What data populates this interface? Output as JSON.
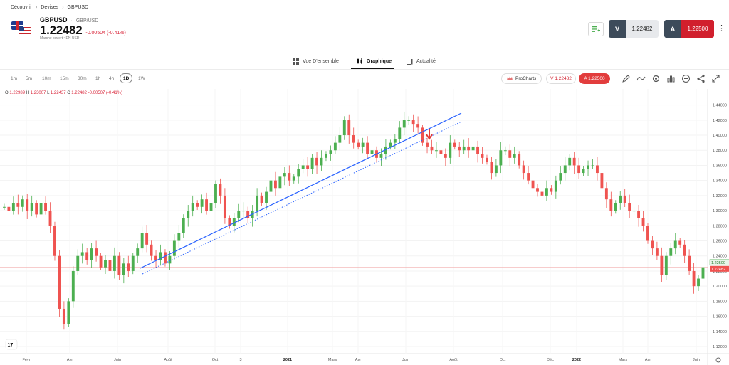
{
  "breadcrumb": {
    "items": [
      "Découvrir",
      "Devises",
      "GBPUSD"
    ]
  },
  "instrument": {
    "symbol": "GBPUSD",
    "pair": "GBP/USD",
    "price": "1.22482",
    "change": "-0.00504 (-0.41%)",
    "market_status": "Marché ouvert",
    "currency": "EN USD"
  },
  "trade": {
    "sell_label": "V",
    "sell_price": "1.22482",
    "buy_label": "A",
    "buy_price": "1.22500"
  },
  "tabs": [
    {
      "label": "Vue D'ensemble",
      "icon": "grid-icon"
    },
    {
      "label": "Graphique",
      "icon": "candles-icon",
      "active": true
    },
    {
      "label": "Actualité",
      "icon": "news-icon"
    }
  ],
  "timeframes": [
    "1m",
    "5m",
    "10m",
    "15m",
    "30m",
    "1h",
    "4h",
    "1D",
    "1W"
  ],
  "active_timeframe": "1D",
  "chart_toolbar": {
    "prochart_label": "ProCharts",
    "sell_pill": "V 1.22482",
    "buy_pill": "A 1.22500",
    "icons": [
      "pencil-icon",
      "indicators-icon",
      "settings-icon",
      "bar-chart-icon",
      "plus-circle-icon",
      "share-icon",
      "expand-icon"
    ]
  },
  "ohlc": {
    "o_label": "O",
    "o": "1.22989",
    "h_label": "H",
    "h": "1.23007",
    "l_label": "L",
    "l": "1.22437",
    "c_label": "C",
    "c": "1.22482",
    "change": "-0.00507 (-0.41%)"
  },
  "colors": {
    "up": "#4caf50",
    "down": "#ef5350",
    "trendline": "#2962ff",
    "brand_red": "#d11f2d"
  },
  "chart_data": {
    "type": "line",
    "title": "",
    "xlabel": "",
    "ylabel": "",
    "ylim": [
      1.12,
      1.45
    ],
    "y_ticks": [
      "1.44000",
      "1.42000",
      "1.40000",
      "1.38000",
      "1.36000",
      "1.34000",
      "1.32000",
      "1.30000",
      "1.28000",
      "1.26000",
      "1.24000",
      "1.22000",
      "1.20000",
      "1.18000",
      "1.16000",
      "1.14000",
      "1.12000"
    ],
    "x_ticks": [
      "Févr",
      "Avr",
      "Juin",
      "Août",
      "Oct",
      "3",
      "2021",
      "Mars",
      "Avr",
      "Juin",
      "Août",
      "Oct",
      "Déc",
      "2022",
      "Mars",
      "Avr",
      "Juin"
    ],
    "current_price_labels": [
      "1.22500",
      "1.22482"
    ],
    "series": [
      {
        "values": [
          1.305,
          1.3,
          1.31,
          1.305,
          1.315,
          1.3,
          1.31,
          1.295,
          1.31,
          1.3,
          1.28,
          1.24,
          1.17,
          1.15,
          1.18,
          1.22,
          1.24,
          1.245,
          1.235,
          1.25,
          1.24,
          1.225,
          1.235,
          1.22,
          1.24,
          1.215,
          1.23,
          1.22,
          1.24,
          1.25,
          1.27,
          1.255,
          1.24,
          1.235,
          1.245,
          1.23,
          1.24,
          1.26,
          1.27,
          1.29,
          1.3,
          1.31,
          1.305,
          1.315,
          1.3,
          1.31,
          1.335,
          1.32,
          1.29,
          1.28,
          1.29,
          1.3,
          1.3,
          1.29,
          1.3,
          1.32,
          1.31,
          1.325,
          1.34,
          1.33,
          1.345,
          1.35,
          1.34,
          1.345,
          1.355,
          1.36,
          1.355,
          1.37,
          1.36,
          1.37,
          1.375,
          1.38,
          1.39,
          1.4,
          1.42,
          1.4,
          1.39,
          1.385,
          1.39,
          1.375,
          1.38,
          1.37,
          1.375,
          1.385,
          1.39,
          1.395,
          1.41,
          1.42,
          1.42,
          1.415,
          1.41,
          1.39,
          1.385,
          1.38,
          1.38,
          1.375,
          1.37,
          1.39,
          1.385,
          1.38,
          1.385,
          1.38,
          1.385,
          1.375,
          1.37,
          1.365,
          1.35,
          1.36,
          1.38,
          1.38,
          1.37,
          1.375,
          1.36,
          1.35,
          1.34,
          1.33,
          1.325,
          1.32,
          1.33,
          1.325,
          1.34,
          1.35,
          1.36,
          1.37,
          1.36,
          1.35,
          1.355,
          1.36,
          1.36,
          1.35,
          1.33,
          1.315,
          1.3,
          1.31,
          1.32,
          1.31,
          1.3,
          1.3,
          1.29,
          1.28,
          1.26,
          1.25,
          1.24,
          1.215,
          1.24,
          1.25,
          1.26,
          1.255,
          1.24,
          1.22,
          1.2,
          1.21,
          1.225
        ]
      }
    ]
  }
}
